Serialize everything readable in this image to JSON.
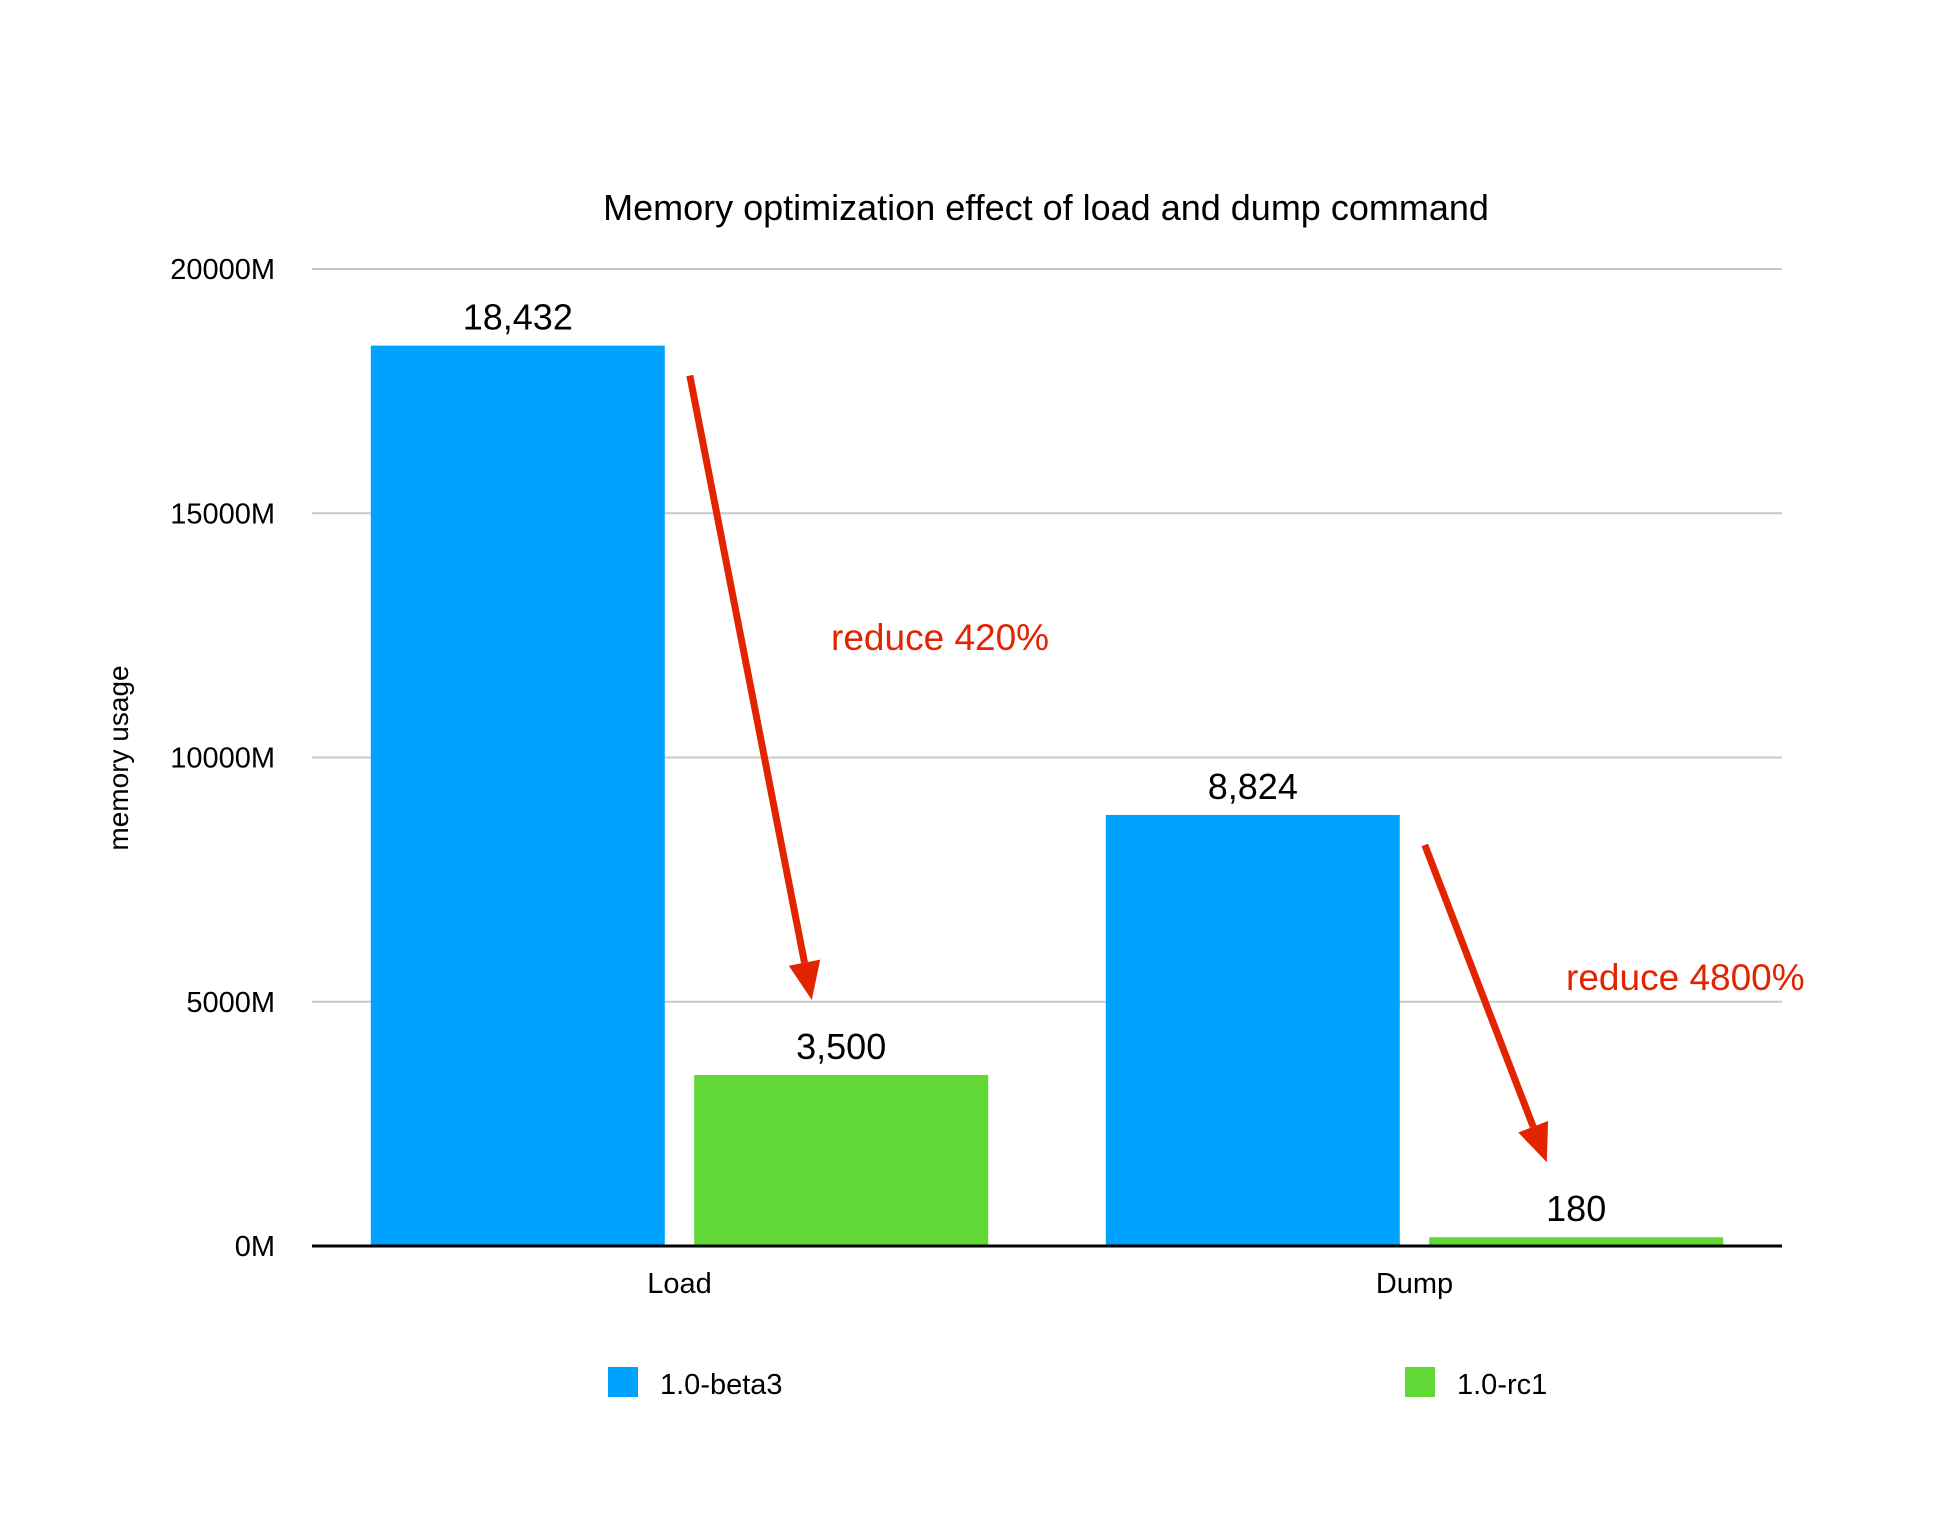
{
  "chart_data": {
    "type": "bar",
    "title": "Memory optimization effect of load and dump command",
    "xlabel": "",
    "ylabel": "memory usage",
    "ylim": [
      0,
      20000
    ],
    "yticks": [
      {
        "value": 0,
        "label": "0M"
      },
      {
        "value": 5000,
        "label": "5000M"
      },
      {
        "value": 10000,
        "label": "10000M"
      },
      {
        "value": 15000,
        "label": "15000M"
      },
      {
        "value": 20000,
        "label": "20000M"
      }
    ],
    "grid": true,
    "categories": [
      "Load",
      "Dump"
    ],
    "series": [
      {
        "name": "1.0-beta3",
        "color": "#00a2ff",
        "values": [
          18432,
          8824
        ],
        "value_labels": [
          "18,432",
          "8,824"
        ]
      },
      {
        "name": "1.0-rc1",
        "color": "#61d836",
        "values": [
          3500,
          180
        ],
        "value_labels": [
          "3,500",
          "180"
        ]
      }
    ],
    "annotations": [
      {
        "category": "Load",
        "text": "reduce 420%",
        "color": "#e22400"
      },
      {
        "category": "Dump",
        "text": "reduce 4800%",
        "color": "#e22400"
      }
    ],
    "legend_position": "bottom"
  }
}
